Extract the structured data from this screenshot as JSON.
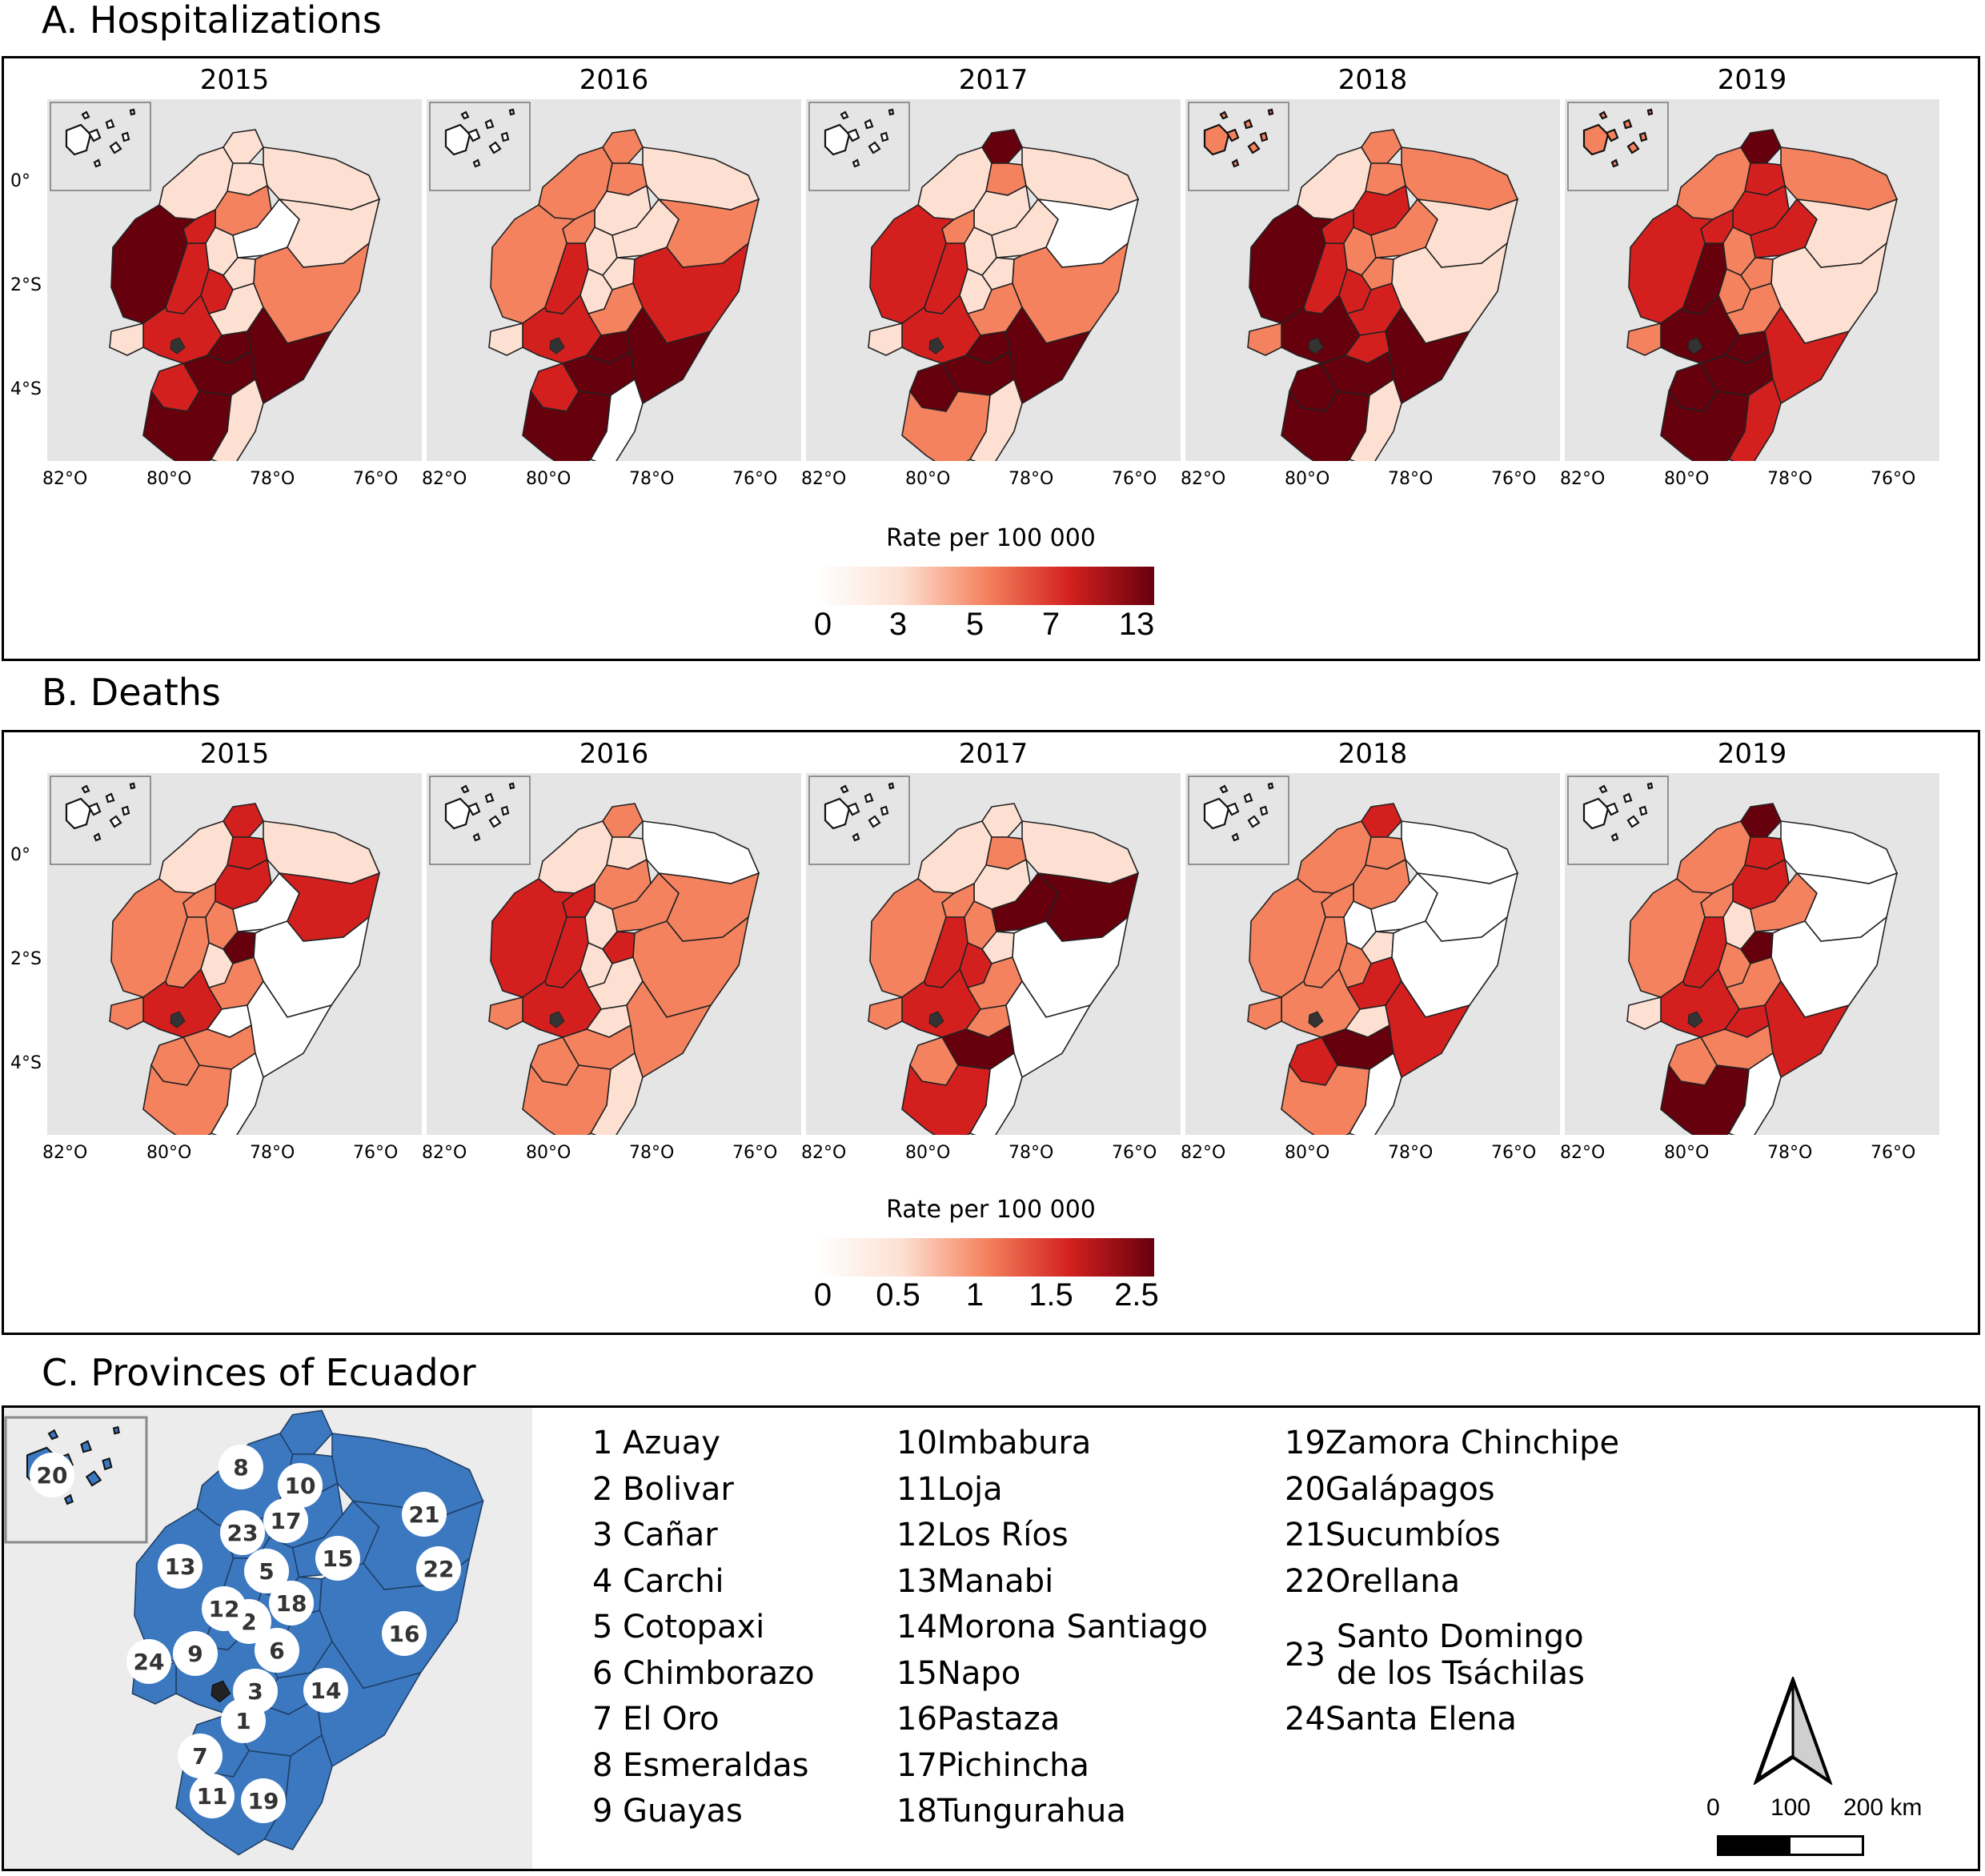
{
  "sections": {
    "hospitalizations": {
      "title": "A. Hospitalizations",
      "legend_title": "Rate per 100 000",
      "legend_ticks": [
        "0",
        "3",
        "5",
        "7",
        "13"
      ]
    },
    "deaths": {
      "title": "B. Deaths",
      "legend_title": "Rate per 100 000",
      "legend_ticks": [
        "0",
        "0.5",
        "1",
        "1.5",
        "2.5"
      ]
    },
    "provinces": {
      "title": "C. Provinces of Ecuador"
    }
  },
  "years": [
    "2015",
    "2016",
    "2017",
    "2018",
    "2019"
  ],
  "axis": {
    "y_ticks": [
      "0°",
      "2°S",
      "4°S"
    ],
    "x_ticks": [
      "82°O",
      "80°O",
      "78°O",
      "76°O"
    ]
  },
  "colors": {
    "map_background": "#e5e5e5",
    "province_fill": "#3c78c0",
    "scale_0": "#ffffff",
    "scale_1": "#fde0d2",
    "scale_2": "#f4825e",
    "scale_3": "#d3201f",
    "scale_4": "#67000d"
  },
  "province_list": [
    {
      "num": "1",
      "name": "Azuay"
    },
    {
      "num": "2",
      "name": "Bolivar"
    },
    {
      "num": "3",
      "name": "Cañar"
    },
    {
      "num": "4",
      "name": "Carchi"
    },
    {
      "num": "5",
      "name": "Cotopaxi"
    },
    {
      "num": "6",
      "name": "Chimborazo"
    },
    {
      "num": "7",
      "name": "El Oro"
    },
    {
      "num": "8",
      "name": "Esmeraldas"
    },
    {
      "num": "9",
      "name": "Guayas"
    },
    {
      "num": "10",
      "name": "Imbabura"
    },
    {
      "num": "11",
      "name": "Loja"
    },
    {
      "num": "12",
      "name": "Los Ríos"
    },
    {
      "num": "13",
      "name": "Manabi"
    },
    {
      "num": "14",
      "name": "Morona Santiago"
    },
    {
      "num": "15",
      "name": "Napo"
    },
    {
      "num": "16",
      "name": "Pastaza"
    },
    {
      "num": "17",
      "name": "Pichincha"
    },
    {
      "num": "18",
      "name": "Tungurahua"
    },
    {
      "num": "19",
      "name": "Zamora Chinchipe"
    },
    {
      "num": "20",
      "name": "Galápagos"
    },
    {
      "num": "21",
      "name": "Sucumbíos"
    },
    {
      "num": "22",
      "name": "Orellana"
    },
    {
      "num": "23",
      "name": "Santo Domingo\nde los Tsáchilas"
    },
    {
      "num": "24",
      "name": "Santa Elena"
    }
  ],
  "scale_bar": {
    "labels": [
      "0",
      "100",
      "200 km"
    ]
  },
  "north_arrow_icon": "north-arrow-icon",
  "map_data": {
    "hospitalizations": {
      "2015": {
        "Esmeraldas": 1,
        "Carchi": 1,
        "Imbabura": 1,
        "Sucumbios": 1,
        "Pichincha": 2,
        "SantoDomingo": 3,
        "Manabi": 4,
        "LosRios": 3,
        "Cotopaxi": 1,
        "Napo": 0,
        "Orellana": 1,
        "Tungurahua": 1,
        "Bolivar": 3,
        "Chimborazo": 1,
        "Pastaza": 2,
        "Guayas": 3,
        "SantaElena": 1,
        "Canar": 4,
        "Azuay": 4,
        "Morona": 4,
        "ElOro": 3,
        "Loja": 4,
        "Zamora": 1
      },
      "2016": {
        "Esmeraldas": 2,
        "Carchi": 2,
        "Imbabura": 2,
        "Sucumbios": 1,
        "Pichincha": 1,
        "SantoDomingo": 2,
        "Manabi": 2,
        "LosRios": 3,
        "Cotopaxi": 1,
        "Napo": 1,
        "Orellana": 2,
        "Tungurahua": 1,
        "Bolivar": 1,
        "Chimborazo": 2,
        "Pastaza": 3,
        "Guayas": 3,
        "SantaElena": 1,
        "Canar": 4,
        "Azuay": 4,
        "Morona": 4,
        "ElOro": 3,
        "Loja": 4,
        "Zamora": 0
      },
      "2017": {
        "Esmeraldas": 1,
        "Carchi": 4,
        "Imbabura": 2,
        "Sucumbios": 1,
        "Pichincha": 1,
        "SantoDomingo": 2,
        "Manabi": 3,
        "LosRios": 3,
        "Cotopaxi": 1,
        "Napo": 1,
        "Orellana": 0,
        "Tungurahua": 1,
        "Bolivar": 1,
        "Chimborazo": 2,
        "Pastaza": 2,
        "Guayas": 3,
        "SantaElena": 1,
        "Canar": 4,
        "Azuay": 4,
        "Morona": 4,
        "ElOro": 4,
        "Loja": 2,
        "Zamora": 1
      },
      "2018": {
        "Esmeraldas": 1,
        "Carchi": 2,
        "Imbabura": 2,
        "Sucumbios": 2,
        "Pichincha": 3,
        "SantoDomingo": 3,
        "Manabi": 4,
        "LosRios": 3,
        "Cotopaxi": 2,
        "Napo": 2,
        "Orellana": 1,
        "Tungurahua": 2,
        "Bolivar": 3,
        "Chimborazo": 3,
        "Pastaza": 1,
        "Guayas": 4,
        "SantaElena": 2,
        "Canar": 3,
        "Azuay": 4,
        "Morona": 4,
        "ElOro": 4,
        "Loja": 4,
        "Zamora": 1
      },
      "2019": {
        "Esmeraldas": 2,
        "Carchi": 4,
        "Imbabura": 3,
        "Sucumbios": 2,
        "Pichincha": 3,
        "SantoDomingo": 3,
        "Manabi": 3,
        "LosRios": 4,
        "Cotopaxi": 2,
        "Napo": 3,
        "Orellana": 1,
        "Tungurahua": 2,
        "Bolivar": 2,
        "Chimborazo": 2,
        "Pastaza": 1,
        "Guayas": 4,
        "SantaElena": 2,
        "Canar": 4,
        "Azuay": 4,
        "Morona": 3,
        "ElOro": 4,
        "Loja": 4,
        "Zamora": 3
      }
    },
    "deaths": {
      "2015": {
        "Esmeraldas": 1,
        "Carchi": 3,
        "Imbabura": 3,
        "Sucumbios": 1,
        "Pichincha": 3,
        "SantoDomingo": 2,
        "Manabi": 2,
        "LosRios": 2,
        "Cotopaxi": 2,
        "Napo": 0,
        "Orellana": 3,
        "Tungurahua": 4,
        "Bolivar": 1,
        "Chimborazo": 2,
        "Pastaza": 0,
        "Guayas": 3,
        "SantaElena": 2,
        "Canar": 0,
        "Azuay": 2,
        "Morona": 0,
        "ElOro": 2,
        "Loja": 2,
        "Zamora": 0
      },
      "2016": {
        "Esmeraldas": 1,
        "Carchi": 2,
        "Imbabura": 1,
        "Sucumbios": 0,
        "Pichincha": 2,
        "SantoDomingo": 3,
        "Manabi": 3,
        "LosRios": 3,
        "Cotopaxi": 1,
        "Napo": 2,
        "Orellana": 2,
        "Tungurahua": 3,
        "Bolivar": 1,
        "Chimborazo": 1,
        "Pastaza": 2,
        "Guayas": 3,
        "SantaElena": 2,
        "Canar": 1,
        "Azuay": 2,
        "Morona": 2,
        "ElOro": 2,
        "Loja": 2,
        "Zamora": 1
      },
      "2017": {
        "Esmeraldas": 1,
        "Carchi": 1,
        "Imbabura": 2,
        "Sucumbios": 1,
        "Pichincha": 1,
        "SantoDomingo": 2,
        "Manabi": 2,
        "LosRios": 3,
        "Cotopaxi": 2,
        "Napo": 4,
        "Orellana": 4,
        "Tungurahua": 1,
        "Bolivar": 3,
        "Chimborazo": 2,
        "Pastaza": 0,
        "Guayas": 3,
        "SantaElena": 2,
        "Canar": 2,
        "Azuay": 4,
        "Morona": 0,
        "ElOro": 2,
        "Loja": 3,
        "Zamora": 0
      },
      "2018": {
        "Esmeraldas": 2,
        "Carchi": 3,
        "Imbabura": 2,
        "Sucumbios": 0,
        "Pichincha": 2,
        "SantoDomingo": 2,
        "Manabi": 2,
        "LosRios": 2,
        "Cotopaxi": 0,
        "Napo": 0,
        "Orellana": 0,
        "Tungurahua": 1,
        "Bolivar": 2,
        "Chimborazo": 3,
        "Pastaza": 0,
        "Guayas": 2,
        "SantaElena": 2,
        "Canar": 1,
        "Azuay": 4,
        "Morona": 3,
        "ElOro": 3,
        "Loja": 2,
        "Zamora": 0
      },
      "2019": {
        "Esmeraldas": 2,
        "Carchi": 4,
        "Imbabura": 3,
        "Sucumbios": 0,
        "Pichincha": 3,
        "SantoDomingo": 2,
        "Manabi": 2,
        "LosRios": 3,
        "Cotopaxi": 1,
        "Napo": 2,
        "Orellana": 0,
        "Tungurahua": 4,
        "Bolivar": 2,
        "Chimborazo": 2,
        "Pastaza": 0,
        "Guayas": 3,
        "SantaElena": 1,
        "Canar": 3,
        "Azuay": 2,
        "Morona": 3,
        "ElOro": 2,
        "Loja": 4,
        "Zamora": 0
      }
    }
  }
}
